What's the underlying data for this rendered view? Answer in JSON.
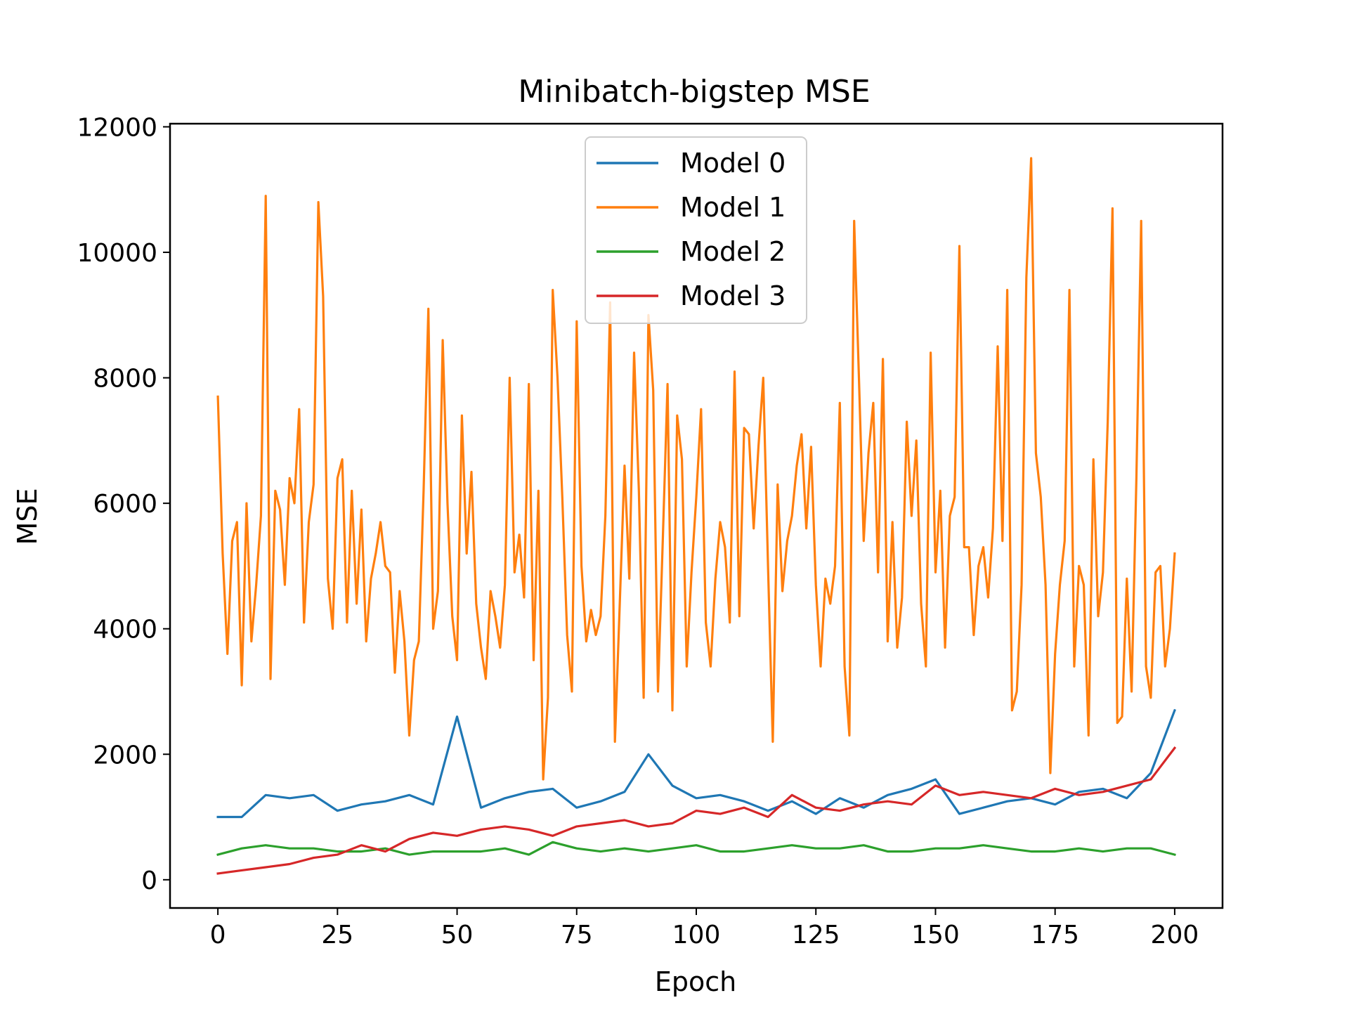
{
  "chart_data": {
    "type": "line",
    "title": "Minibatch-bigstep MSE",
    "xlabel": "Epoch",
    "ylabel": "MSE",
    "xlim": [
      -10,
      210
    ],
    "ylim": [
      -450,
      12050
    ],
    "xticks": [
      0,
      25,
      50,
      75,
      100,
      125,
      150,
      175,
      200
    ],
    "yticks": [
      0,
      2000,
      4000,
      6000,
      8000,
      10000,
      12000
    ],
    "grid": false,
    "legend_position": "upper center",
    "series": [
      {
        "name": "Model 0",
        "color": "#1f77b4",
        "x_start": 0,
        "x_step": 5,
        "values": [
          1000,
          1000,
          1350,
          1300,
          1350,
          1100,
          1200,
          1250,
          1350,
          1200,
          2600,
          1150,
          1300,
          1400,
          1450,
          1150,
          1250,
          1400,
          2000,
          1500,
          1300,
          1350,
          1250,
          1100,
          1250,
          1050,
          1300,
          1150,
          1350,
          1450,
          1600,
          1050,
          1150,
          1250,
          1300,
          1200,
          1400,
          1450,
          1300,
          1700,
          2700
        ]
      },
      {
        "name": "Model 1",
        "color": "#ff7f0e",
        "x_start": 0,
        "x_step": 1,
        "values": [
          7700,
          5200,
          3600,
          5400,
          5700,
          3100,
          6000,
          3800,
          4700,
          5800,
          10900,
          3200,
          6200,
          5900,
          4700,
          6400,
          6000,
          7500,
          4100,
          5700,
          6300,
          10800,
          9300,
          4800,
          4000,
          6400,
          6700,
          4100,
          6200,
          4400,
          5900,
          3800,
          4800,
          5200,
          5700,
          5000,
          4900,
          3300,
          4600,
          3800,
          2300,
          3500,
          3800,
          6200,
          9100,
          4000,
          4600,
          8600,
          6000,
          4200,
          3500,
          7400,
          5200,
          6500,
          4400,
          3700,
          3200,
          4600,
          4200,
          3700,
          4700,
          8000,
          4900,
          5500,
          4500,
          7900,
          3500,
          6200,
          1600,
          2900,
          9400,
          8000,
          6100,
          3900,
          3000,
          8900,
          5000,
          3800,
          4300,
          3900,
          4200,
          5800,
          9200,
          2200,
          4400,
          6600,
          4800,
          8400,
          6200,
          2900,
          9000,
          7800,
          3000,
          5400,
          7900,
          2700,
          7400,
          6700,
          3400,
          4900,
          6100,
          7500,
          4100,
          3400,
          4800,
          5700,
          5300,
          4100,
          8100,
          4200,
          7200,
          7100,
          5600,
          6900,
          8000,
          5000,
          2200,
          6300,
          4600,
          5400,
          5800,
          6600,
          7100,
          5600,
          6900,
          4700,
          3400,
          4800,
          4400,
          5000,
          7600,
          3400,
          2300,
          10500,
          8000,
          5400,
          6800,
          7600,
          4900,
          8300,
          3800,
          5700,
          3700,
          4500,
          7300,
          5800,
          7000,
          4400,
          3400,
          8400,
          4900,
          6200,
          3700,
          5800,
          6100,
          10100,
          5300,
          5300,
          3900,
          5000,
          5300,
          4500,
          5600,
          8500,
          5400,
          9400,
          2700,
          3000,
          4700,
          9600,
          11500,
          6800,
          6100,
          4700,
          1700,
          3600,
          4700,
          5400,
          9400,
          3400,
          5000,
          4700,
          2300,
          6700,
          4200,
          4900,
          7300,
          10700,
          2500,
          2600,
          4800,
          3000,
          6400,
          10500,
          3400,
          2900,
          4900,
          5000,
          3400,
          4000,
          5200
        ]
      },
      {
        "name": "Model 2",
        "color": "#2ca02c",
        "x_start": 0,
        "x_step": 5,
        "values": [
          400,
          500,
          550,
          500,
          500,
          450,
          450,
          500,
          400,
          450,
          450,
          450,
          500,
          400,
          600,
          500,
          450,
          500,
          450,
          500,
          550,
          450,
          450,
          500,
          550,
          500,
          500,
          550,
          450,
          450,
          500,
          500,
          550,
          500,
          450,
          450,
          500,
          450,
          500,
          500,
          400
        ]
      },
      {
        "name": "Model 3",
        "color": "#d62728",
        "x_start": 0,
        "x_step": 5,
        "values": [
          100,
          150,
          200,
          250,
          350,
          400,
          550,
          450,
          650,
          750,
          700,
          800,
          850,
          800,
          700,
          850,
          900,
          950,
          850,
          900,
          1100,
          1050,
          1150,
          1000,
          1350,
          1150,
          1100,
          1200,
          1250,
          1200,
          1500,
          1350,
          1400,
          1350,
          1300,
          1450,
          1350,
          1400,
          1500,
          1600,
          2100
        ]
      }
    ]
  }
}
